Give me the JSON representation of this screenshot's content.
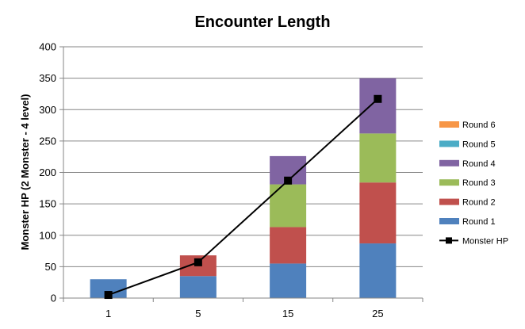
{
  "chart_data": {
    "type": "bar",
    "title": "Encounter Length",
    "xlabel": "",
    "ylabel": "Monster HP (2 Monster - 4 level)",
    "categories": [
      "1",
      "5",
      "15",
      "25"
    ],
    "ylim": [
      0,
      400
    ],
    "yticks": [
      0,
      50,
      100,
      150,
      200,
      250,
      300,
      350,
      400
    ],
    "grid": true,
    "legend_position": "right",
    "stacked": true,
    "series": [
      {
        "name": "Round 1",
        "type": "bar",
        "color": "#4f81bd",
        "values": [
          30,
          35,
          55,
          87
        ]
      },
      {
        "name": "Round 2",
        "type": "bar",
        "color": "#c0504d",
        "values": [
          0,
          33,
          58,
          97
        ]
      },
      {
        "name": "Round 3",
        "type": "bar",
        "color": "#9bbb59",
        "values": [
          0,
          0,
          68,
          78
        ]
      },
      {
        "name": "Round 4",
        "type": "bar",
        "color": "#8064a2",
        "values": [
          0,
          0,
          45,
          88
        ]
      },
      {
        "name": "Round 5",
        "type": "bar",
        "color": "#4bacc6",
        "values": [
          0,
          0,
          0,
          0
        ]
      },
      {
        "name": "Round 6",
        "type": "bar",
        "color": "#f79646",
        "values": [
          0,
          0,
          0,
          0
        ]
      },
      {
        "name": "Monster HP",
        "type": "line",
        "color": "#000000",
        "marker": "square",
        "values": [
          5,
          57,
          187,
          317
        ]
      }
    ],
    "legend_order": [
      "Round 6",
      "Round 5",
      "Round 4",
      "Round 3",
      "Round 2",
      "Round 1",
      "Monster HP"
    ]
  }
}
